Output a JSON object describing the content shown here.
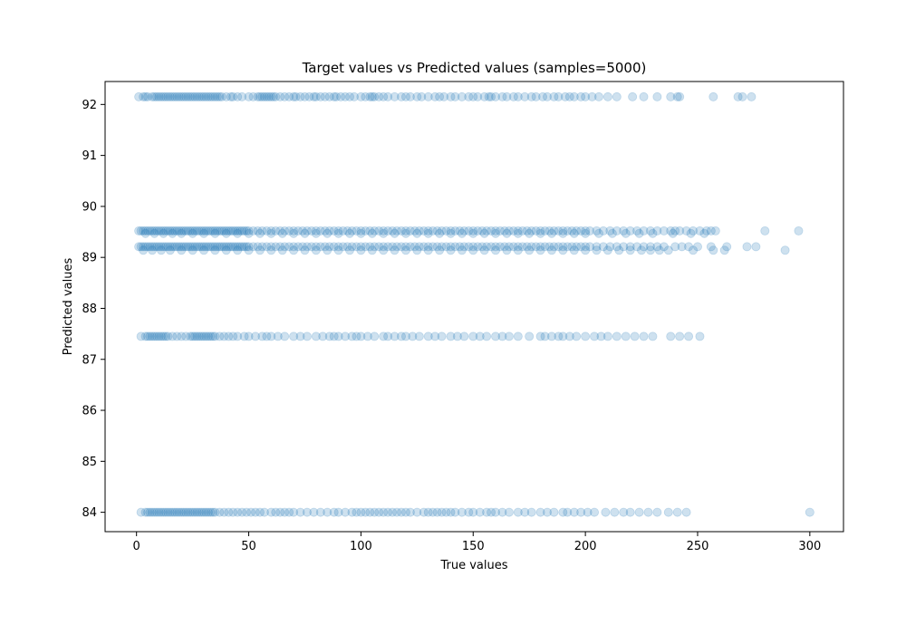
{
  "chart_data": {
    "type": "scatter",
    "title": "Target values vs Predicted values (samples=5000)",
    "xlabel": "True values",
    "ylabel": "Predicted values",
    "xlim": [
      -14,
      315
    ],
    "ylim": [
      83.62,
      92.45
    ],
    "xticks": [
      0,
      50,
      100,
      150,
      200,
      250,
      300
    ],
    "yticks": [
      84,
      85,
      86,
      87,
      88,
      89,
      90,
      91,
      92
    ],
    "grid": false,
    "point_color": "#1f77b4",
    "point_alpha": 0.22,
    "series": [
      {
        "y": 92.15,
        "x": [
          1,
          3,
          4,
          5,
          7,
          8,
          9,
          10,
          11,
          12,
          13,
          14,
          15,
          16,
          17,
          18,
          19,
          20,
          21,
          22,
          23,
          24,
          25,
          26,
          27,
          28,
          29,
          30,
          31,
          32,
          33,
          34,
          35,
          36,
          37,
          38,
          40,
          42,
          43,
          45,
          47,
          50,
          52,
          54,
          55,
          56,
          57,
          58,
          59,
          60,
          61,
          62,
          64,
          66,
          68,
          70,
          71,
          73,
          75,
          77,
          79,
          80,
          82,
          84,
          86,
          88,
          89,
          91,
          93,
          95,
          97,
          100,
          102,
          104,
          105,
          106,
          108,
          110,
          112,
          115,
          118,
          120,
          122,
          125,
          127,
          130,
          133,
          135,
          137,
          140,
          142,
          145,
          148,
          150,
          152,
          155,
          157,
          158,
          160,
          163,
          165,
          168,
          170,
          173,
          176,
          178,
          181,
          183,
          186,
          188,
          191,
          193,
          195,
          198,
          200,
          203,
          206,
          210,
          214,
          221,
          226,
          232,
          238,
          241,
          242,
          257,
          268,
          270,
          274
        ]
      },
      {
        "y": 89.52,
        "x": [
          1,
          2,
          3,
          4,
          5,
          6,
          7,
          8,
          9,
          10,
          11,
          12,
          13,
          14,
          15,
          16,
          17,
          18,
          19,
          20,
          21,
          22,
          23,
          24,
          25,
          26,
          27,
          28,
          29,
          30,
          31,
          32,
          33,
          34,
          35,
          36,
          37,
          38,
          39,
          40,
          41,
          42,
          43,
          44,
          45,
          46,
          47,
          48,
          49,
          50,
          52,
          54,
          56,
          58,
          60,
          62,
          64,
          66,
          68,
          70,
          72,
          74,
          76,
          78,
          80,
          82,
          84,
          86,
          88,
          90,
          92,
          94,
          96,
          98,
          100,
          102,
          104,
          106,
          108,
          110,
          112,
          114,
          116,
          118,
          120,
          122,
          124,
          126,
          128,
          130,
          132,
          134,
          136,
          138,
          140,
          142,
          144,
          146,
          148,
          150,
          152,
          154,
          156,
          158,
          160,
          162,
          164,
          166,
          168,
          170,
          172,
          174,
          176,
          178,
          180,
          182,
          184,
          186,
          188,
          190,
          192,
          194,
          196,
          198,
          200,
          202,
          205,
          208,
          211,
          214,
          217,
          220,
          223,
          226,
          229,
          232,
          235,
          238,
          240,
          242,
          245,
          248,
          251,
          254,
          256,
          258,
          280,
          295
        ]
      },
      {
        "y": 89.47,
        "x": [
          4,
          8,
          12,
          16,
          20,
          25,
          30,
          35,
          40,
          45,
          50,
          55,
          60,
          65,
          70,
          75,
          80,
          85,
          90,
          95,
          100,
          105,
          110,
          115,
          120,
          125,
          130,
          135,
          140,
          145,
          150,
          155,
          160,
          165,
          170,
          175,
          180,
          185,
          190,
          195,
          200,
          206,
          212,
          218,
          224,
          230,
          239,
          247,
          253
        ]
      },
      {
        "y": 89.21,
        "x": [
          1,
          2,
          3,
          4,
          5,
          6,
          7,
          8,
          9,
          10,
          11,
          12,
          13,
          14,
          15,
          16,
          17,
          18,
          19,
          20,
          21,
          22,
          23,
          24,
          25,
          26,
          27,
          28,
          29,
          30,
          31,
          32,
          33,
          34,
          35,
          36,
          37,
          38,
          39,
          40,
          41,
          42,
          43,
          44,
          45,
          46,
          47,
          48,
          49,
          50,
          52,
          54,
          56,
          58,
          60,
          62,
          64,
          66,
          68,
          70,
          72,
          74,
          76,
          78,
          80,
          82,
          84,
          86,
          88,
          90,
          92,
          94,
          96,
          98,
          100,
          102,
          104,
          106,
          108,
          110,
          112,
          114,
          116,
          118,
          120,
          122,
          124,
          126,
          128,
          130,
          132,
          134,
          136,
          138,
          140,
          142,
          144,
          146,
          148,
          150,
          152,
          154,
          156,
          158,
          160,
          162,
          164,
          166,
          168,
          170,
          172,
          174,
          176,
          178,
          180,
          182,
          184,
          186,
          188,
          190,
          192,
          194,
          196,
          198,
          200,
          202,
          205,
          208,
          211,
          214,
          217,
          220,
          223,
          226,
          229,
          232,
          235,
          240,
          243,
          246,
          250,
          256,
          263,
          272,
          276
        ]
      },
      {
        "y": 89.14,
        "x": [
          3,
          7,
          11,
          15,
          20,
          25,
          30,
          35,
          40,
          45,
          50,
          55,
          60,
          65,
          70,
          75,
          80,
          85,
          90,
          95,
          100,
          105,
          110,
          115,
          120,
          125,
          130,
          135,
          140,
          145,
          150,
          155,
          160,
          165,
          170,
          175,
          180,
          185,
          190,
          195,
          200,
          205,
          210,
          215,
          220,
          225,
          229,
          233,
          237,
          248,
          257,
          262,
          289
        ]
      },
      {
        "y": 87.45,
        "x": [
          2,
          4,
          5,
          6,
          7,
          8,
          9,
          10,
          11,
          12,
          13,
          14,
          16,
          18,
          20,
          22,
          24,
          25,
          26,
          27,
          28,
          29,
          30,
          31,
          32,
          33,
          34,
          35,
          37,
          39,
          41,
          43,
          45,
          48,
          50,
          53,
          56,
          58,
          60,
          63,
          66,
          70,
          73,
          76,
          80,
          83,
          86,
          88,
          90,
          93,
          96,
          98,
          100,
          103,
          106,
          110,
          112,
          115,
          118,
          120,
          123,
          126,
          130,
          133,
          136,
          140,
          143,
          146,
          150,
          153,
          156,
          160,
          163,
          166,
          170,
          175,
          180,
          182,
          185,
          188,
          190,
          193,
          196,
          200,
          204,
          207,
          210,
          214,
          218,
          222,
          226,
          230,
          238,
          242,
          246,
          251
        ]
      },
      {
        "y": 84.0,
        "x": [
          2,
          4,
          5,
          6,
          7,
          8,
          9,
          10,
          11,
          12,
          13,
          14,
          15,
          16,
          17,
          18,
          19,
          20,
          21,
          22,
          23,
          24,
          25,
          26,
          27,
          28,
          29,
          30,
          31,
          32,
          33,
          34,
          35,
          37,
          39,
          41,
          43,
          45,
          47,
          49,
          51,
          53,
          55,
          57,
          60,
          62,
          64,
          66,
          68,
          70,
          73,
          76,
          79,
          82,
          85,
          88,
          90,
          93,
          96,
          98,
          100,
          102,
          104,
          106,
          108,
          110,
          112,
          114,
          116,
          118,
          120,
          122,
          125,
          128,
          130,
          132,
          134,
          136,
          138,
          140,
          142,
          145,
          148,
          150,
          153,
          156,
          158,
          160,
          163,
          166,
          170,
          173,
          176,
          180,
          183,
          186,
          190,
          192,
          195,
          198,
          201,
          204,
          209,
          213,
          217,
          220,
          224,
          228,
          232,
          237,
          241,
          245,
          300
        ]
      }
    ]
  }
}
